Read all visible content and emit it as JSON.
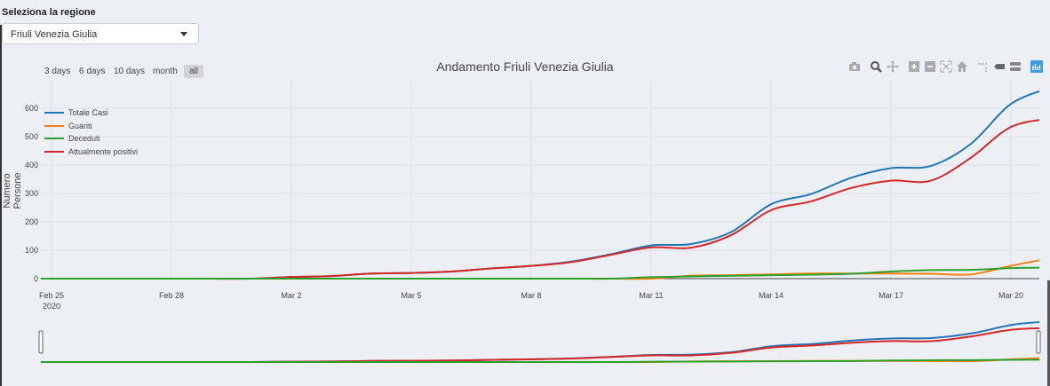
{
  "selector": {
    "label": "Seleziona la regione",
    "value": "Friuli Venezia Giulia"
  },
  "range_buttons": [
    {
      "label": "3 days",
      "active": false
    },
    {
      "label": "6 days",
      "active": false
    },
    {
      "label": "10 days",
      "active": false
    },
    {
      "label": "month",
      "active": false
    },
    {
      "label": "all",
      "active": true
    }
  ],
  "modebar": [
    "camera-icon",
    "zoom-icon",
    "pan-icon",
    "zoom-in-icon",
    "zoom-out-icon",
    "autoscale-icon",
    "reset-axes-icon",
    "spike-lines-icon",
    "hover-closest-icon",
    "hover-compare-icon",
    "plotly-logo-icon"
  ],
  "chart_data": {
    "type": "line",
    "title": "Andamento Friuli Venezia Giulia",
    "xlabel": "",
    "ylabel": "Numero Persone",
    "x": [
      "Feb 25",
      "Feb 26",
      "Feb 27",
      "Feb 28",
      "Feb 29",
      "Mar 1",
      "Mar 2",
      "Mar 3",
      "Mar 4",
      "Mar 5",
      "Mar 6",
      "Mar 7",
      "Mar 8",
      "Mar 9",
      "Mar 10",
      "Mar 11",
      "Mar 12",
      "Mar 13",
      "Mar 14",
      "Mar 15",
      "Mar 16",
      "Mar 17",
      "Mar 18",
      "Mar 19",
      "Mar 20",
      "Mar 21"
    ],
    "x_ticks": [
      "Feb 25",
      "Feb 28",
      "Mar 2",
      "Mar 5",
      "Mar 8",
      "Mar 11",
      "Mar 14",
      "Mar 17",
      "Mar 20"
    ],
    "x_tick_year": "2020",
    "y_ticks": [
      0,
      100,
      200,
      300,
      400,
      500,
      600
    ],
    "ylim": [
      0,
      690
    ],
    "grid": true,
    "legend_position": "top-left",
    "rangeslider": true,
    "series": [
      {
        "name": "Totale Casi",
        "color": "#1f77b4",
        "values": [
          0,
          0,
          0,
          0,
          0,
          0,
          6,
          9,
          18,
          20,
          25,
          36,
          45,
          60,
          86,
          117,
          122,
          164,
          262,
          298,
          355,
          389,
          397,
          475,
          615,
          673
        ]
      },
      {
        "name": "Guariti",
        "color": "#ff7f0e",
        "values": [
          0,
          0,
          0,
          0,
          0,
          0,
          0,
          0,
          0,
          0,
          0,
          0,
          0,
          0,
          0,
          0,
          10,
          12,
          15,
          18,
          18,
          18,
          17,
          15,
          45,
          72
        ]
      },
      {
        "name": "Deceduti",
        "color": "#2ca02c",
        "values": [
          0,
          0,
          0,
          0,
          0,
          0,
          0,
          0,
          0,
          0,
          0,
          0,
          0,
          0,
          0,
          5,
          8,
          10,
          12,
          14,
          17,
          25,
          30,
          31,
          37,
          39
        ]
      },
      {
        "name": "Attualmente positivi",
        "color": "#d62728",
        "values": [
          0,
          0,
          0,
          0,
          0,
          0,
          6,
          9,
          18,
          20,
          25,
          36,
          45,
          58,
          84,
          110,
          109,
          153,
          241,
          272,
          319,
          345,
          345,
          426,
          534,
          564
        ]
      }
    ]
  }
}
